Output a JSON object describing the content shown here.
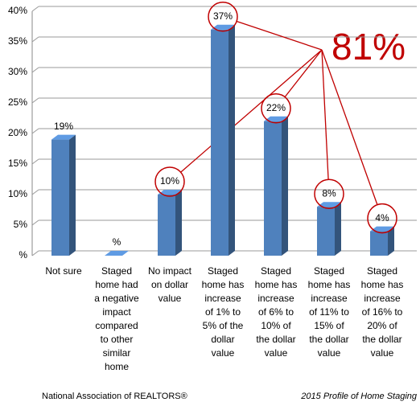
{
  "chart_data": {
    "type": "bar",
    "categories": [
      [
        "Not sure"
      ],
      [
        "Staged",
        "home had",
        "a negative",
        "impact",
        "compared",
        "to other",
        "similar",
        "home"
      ],
      [
        "No impact",
        "on dollar",
        "value"
      ],
      [
        "Staged",
        "home has",
        "increase",
        "of 1% to",
        "5% of the",
        "dollar",
        "value"
      ],
      [
        "Staged",
        "home has",
        "increase",
        "of 6% to",
        "10% of",
        "the dollar",
        "value"
      ],
      [
        "Staged",
        "home has",
        "increase",
        "of 11% to",
        "15% of",
        "the dollar",
        "value"
      ],
      [
        "Staged",
        "home has",
        "increase",
        "of 16% to",
        "20% of",
        "the dollar",
        "value"
      ]
    ],
    "values": [
      19,
      0,
      10,
      37,
      22,
      8,
      4
    ],
    "value_labels": [
      "19%",
      "%",
      "10%",
      "37%",
      "22%",
      "8%",
      "4%"
    ],
    "color": "#4f81bd",
    "ylim": [
      0,
      40
    ],
    "yticks": [
      {
        "value": 0,
        "label": "%"
      },
      {
        "value": 5,
        "label": "5%"
      },
      {
        "value": 10,
        "label": "10%"
      },
      {
        "value": 15,
        "label": "15%"
      },
      {
        "value": 20,
        "label": "20%"
      },
      {
        "value": 25,
        "label": "25%"
      },
      {
        "value": 30,
        "label": "30%"
      },
      {
        "value": 35,
        "label": "35%"
      },
      {
        "value": 40,
        "label": "40%"
      }
    ],
    "grid": true,
    "annotation": "81%",
    "source": "National Association of REALTORS®",
    "report": "2015 Profile of Home Staging"
  }
}
